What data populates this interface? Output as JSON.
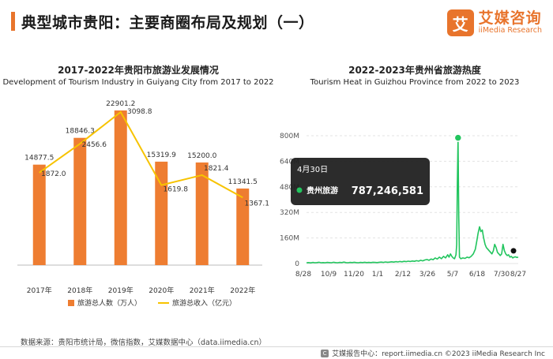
{
  "header": {
    "title": "典型城市贵阳：主要商圈布局及规划（一）"
  },
  "logo": {
    "mark": "艾",
    "cn": "艾媒咨询",
    "en": "iiMedia Research"
  },
  "chart_data": [
    {
      "type": "bar",
      "title": "2017-2022年贵阳市旅游业发展情况",
      "subtitle": "Development of Tourism Industry in Guiyang City from 2017 to 2022",
      "categories": [
        "2017年",
        "2018年",
        "2019年",
        "2020年",
        "2021年",
        "2022年"
      ],
      "series": [
        {
          "name": "旅游总人数（万人）",
          "type": "bar",
          "color": "#ee7d31",
          "values": [
            14877.5,
            18846.3,
            22901.2,
            15319.9,
            15200.0,
            11341.5
          ],
          "labels": [
            "14877.5",
            "18846.3",
            "22901.2",
            "15319.9",
            "15200.0",
            "11341.5"
          ]
        },
        {
          "name": "旅游总收入（亿元）",
          "type": "line",
          "color": "#f7c300",
          "values": [
            1872.0,
            2456.6,
            3098.8,
            1619.8,
            1821.4,
            1367.1
          ],
          "labels": [
            "1872.0",
            "2456.6",
            "3098.8",
            "1619.8",
            "1821.4",
            "1367.1"
          ]
        }
      ],
      "legend": "bottom"
    },
    {
      "type": "line",
      "title": "2022-2023年贵州省旅游热度",
      "subtitle": "Tourism Heat in Guizhou Province from 2022 to 2023",
      "y_ticks": [
        "800M",
        "640M",
        "480M",
        "320M",
        "160M",
        "0"
      ],
      "y_tick_values": [
        800,
        640,
        480,
        320,
        160,
        0
      ],
      "x_ticks": [
        "8/28",
        "10/9",
        "11/20",
        "1/1",
        "2/12",
        "3/26",
        "5/7",
        "6/18",
        "7/30",
        "8/27"
      ],
      "ylim": [
        0,
        800
      ],
      "series": [
        {
          "name": "贵州旅游",
          "color": "#22c55e",
          "points": [
            [
              0,
              5
            ],
            [
              3,
              6
            ],
            [
              6,
              4
            ],
            [
              9,
              7
            ],
            [
              12,
              5
            ],
            [
              15,
              6
            ],
            [
              18,
              8
            ],
            [
              21,
              5
            ],
            [
              24,
              6
            ],
            [
              27,
              5
            ],
            [
              30,
              7
            ],
            [
              33,
              6
            ],
            [
              36,
              5
            ],
            [
              39,
              8
            ],
            [
              42,
              6
            ],
            [
              45,
              5
            ],
            [
              48,
              7
            ],
            [
              51,
              6
            ],
            [
              54,
              9
            ],
            [
              57,
              6
            ],
            [
              60,
              5
            ],
            [
              63,
              7
            ],
            [
              66,
              6
            ],
            [
              69,
              8
            ],
            [
              72,
              6
            ],
            [
              75,
              5
            ],
            [
              78,
              7
            ],
            [
              81,
              6
            ],
            [
              84,
              8
            ],
            [
              87,
              6
            ],
            [
              90,
              7
            ],
            [
              93,
              6
            ],
            [
              96,
              8
            ],
            [
              99,
              7
            ],
            [
              102,
              6
            ],
            [
              105,
              8
            ],
            [
              108,
              9
            ],
            [
              111,
              7
            ],
            [
              114,
              10
            ],
            [
              117,
              8
            ],
            [
              120,
              9
            ],
            [
              123,
              11
            ],
            [
              126,
              9
            ],
            [
              129,
              12
            ],
            [
              132,
              10
            ],
            [
              135,
              13
            ],
            [
              138,
              11
            ],
            [
              141,
              14
            ],
            [
              144,
              12
            ],
            [
              147,
              15
            ],
            [
              150,
              13
            ],
            [
              153,
              16
            ],
            [
              156,
              14
            ],
            [
              159,
              18
            ],
            [
              162,
              15
            ],
            [
              165,
              20
            ],
            [
              168,
              17
            ],
            [
              171,
              22
            ],
            [
              174,
              25
            ],
            [
              177,
              20
            ],
            [
              180,
              28
            ],
            [
              183,
              24
            ],
            [
              186,
              35
            ],
            [
              189,
              28
            ],
            [
              192,
              40
            ],
            [
              195,
              30
            ],
            [
              198,
              45
            ],
            [
              201,
              35
            ],
            [
              204,
              55
            ],
            [
              206,
              40
            ],
            [
              208,
              60
            ],
            [
              210,
              45
            ],
            [
              212,
              35
            ],
            [
              214,
              30
            ],
            [
              216,
              55
            ],
            [
              217,
              120
            ],
            [
              218,
              500
            ],
            [
              219,
              787
            ],
            [
              220,
              300
            ],
            [
              221,
              40
            ],
            [
              223,
              30
            ],
            [
              226,
              35
            ],
            [
              229,
              32
            ],
            [
              232,
              40
            ],
            [
              235,
              36
            ],
            [
              238,
              45
            ],
            [
              241,
              60
            ],
            [
              244,
              90
            ],
            [
              246,
              140
            ],
            [
              248,
              190
            ],
            [
              250,
              230
            ],
            [
              252,
              200
            ],
            [
              254,
              210
            ],
            [
              256,
              160
            ],
            [
              258,
              120
            ],
            [
              260,
              100
            ],
            [
              262,
              90
            ],
            [
              264,
              80
            ],
            [
              266,
              70
            ],
            [
              268,
              60
            ],
            [
              270,
              80
            ],
            [
              272,
              120
            ],
            [
              274,
              100
            ],
            [
              276,
              70
            ],
            [
              278,
              60
            ],
            [
              280,
              50
            ],
            [
              282,
              60
            ],
            [
              284,
              120
            ],
            [
              286,
              80
            ],
            [
              288,
              60
            ],
            [
              290,
              50
            ],
            [
              292,
              55
            ],
            [
              294,
              40
            ],
            [
              296,
              45
            ],
            [
              298,
              35
            ],
            [
              300,
              40
            ],
            [
              302,
              42
            ],
            [
              304,
              38
            ],
            [
              306,
              40
            ]
          ]
        }
      ],
      "end_point": [
        306,
        40
      ],
      "peak": [
        219,
        787
      ],
      "tooltip": {
        "date": "4月30日",
        "series": "贵州旅游",
        "value": "787,246,581"
      }
    }
  ],
  "footer": {
    "source": "数据来源：贵阳市统计局，微信指数，艾媒数据中心（data.iimedia.cn）",
    "right_icon": "C",
    "right_text": "艾媒报告中心：report.iimedia.cn  ©2023  iiMedia Research  Inc"
  },
  "colors": {
    "accent": "#e8742c",
    "bar": "#ee7d31",
    "line": "#f7c300",
    "heat": "#22c55e",
    "tooltip_bg": "#1f1f1f"
  }
}
